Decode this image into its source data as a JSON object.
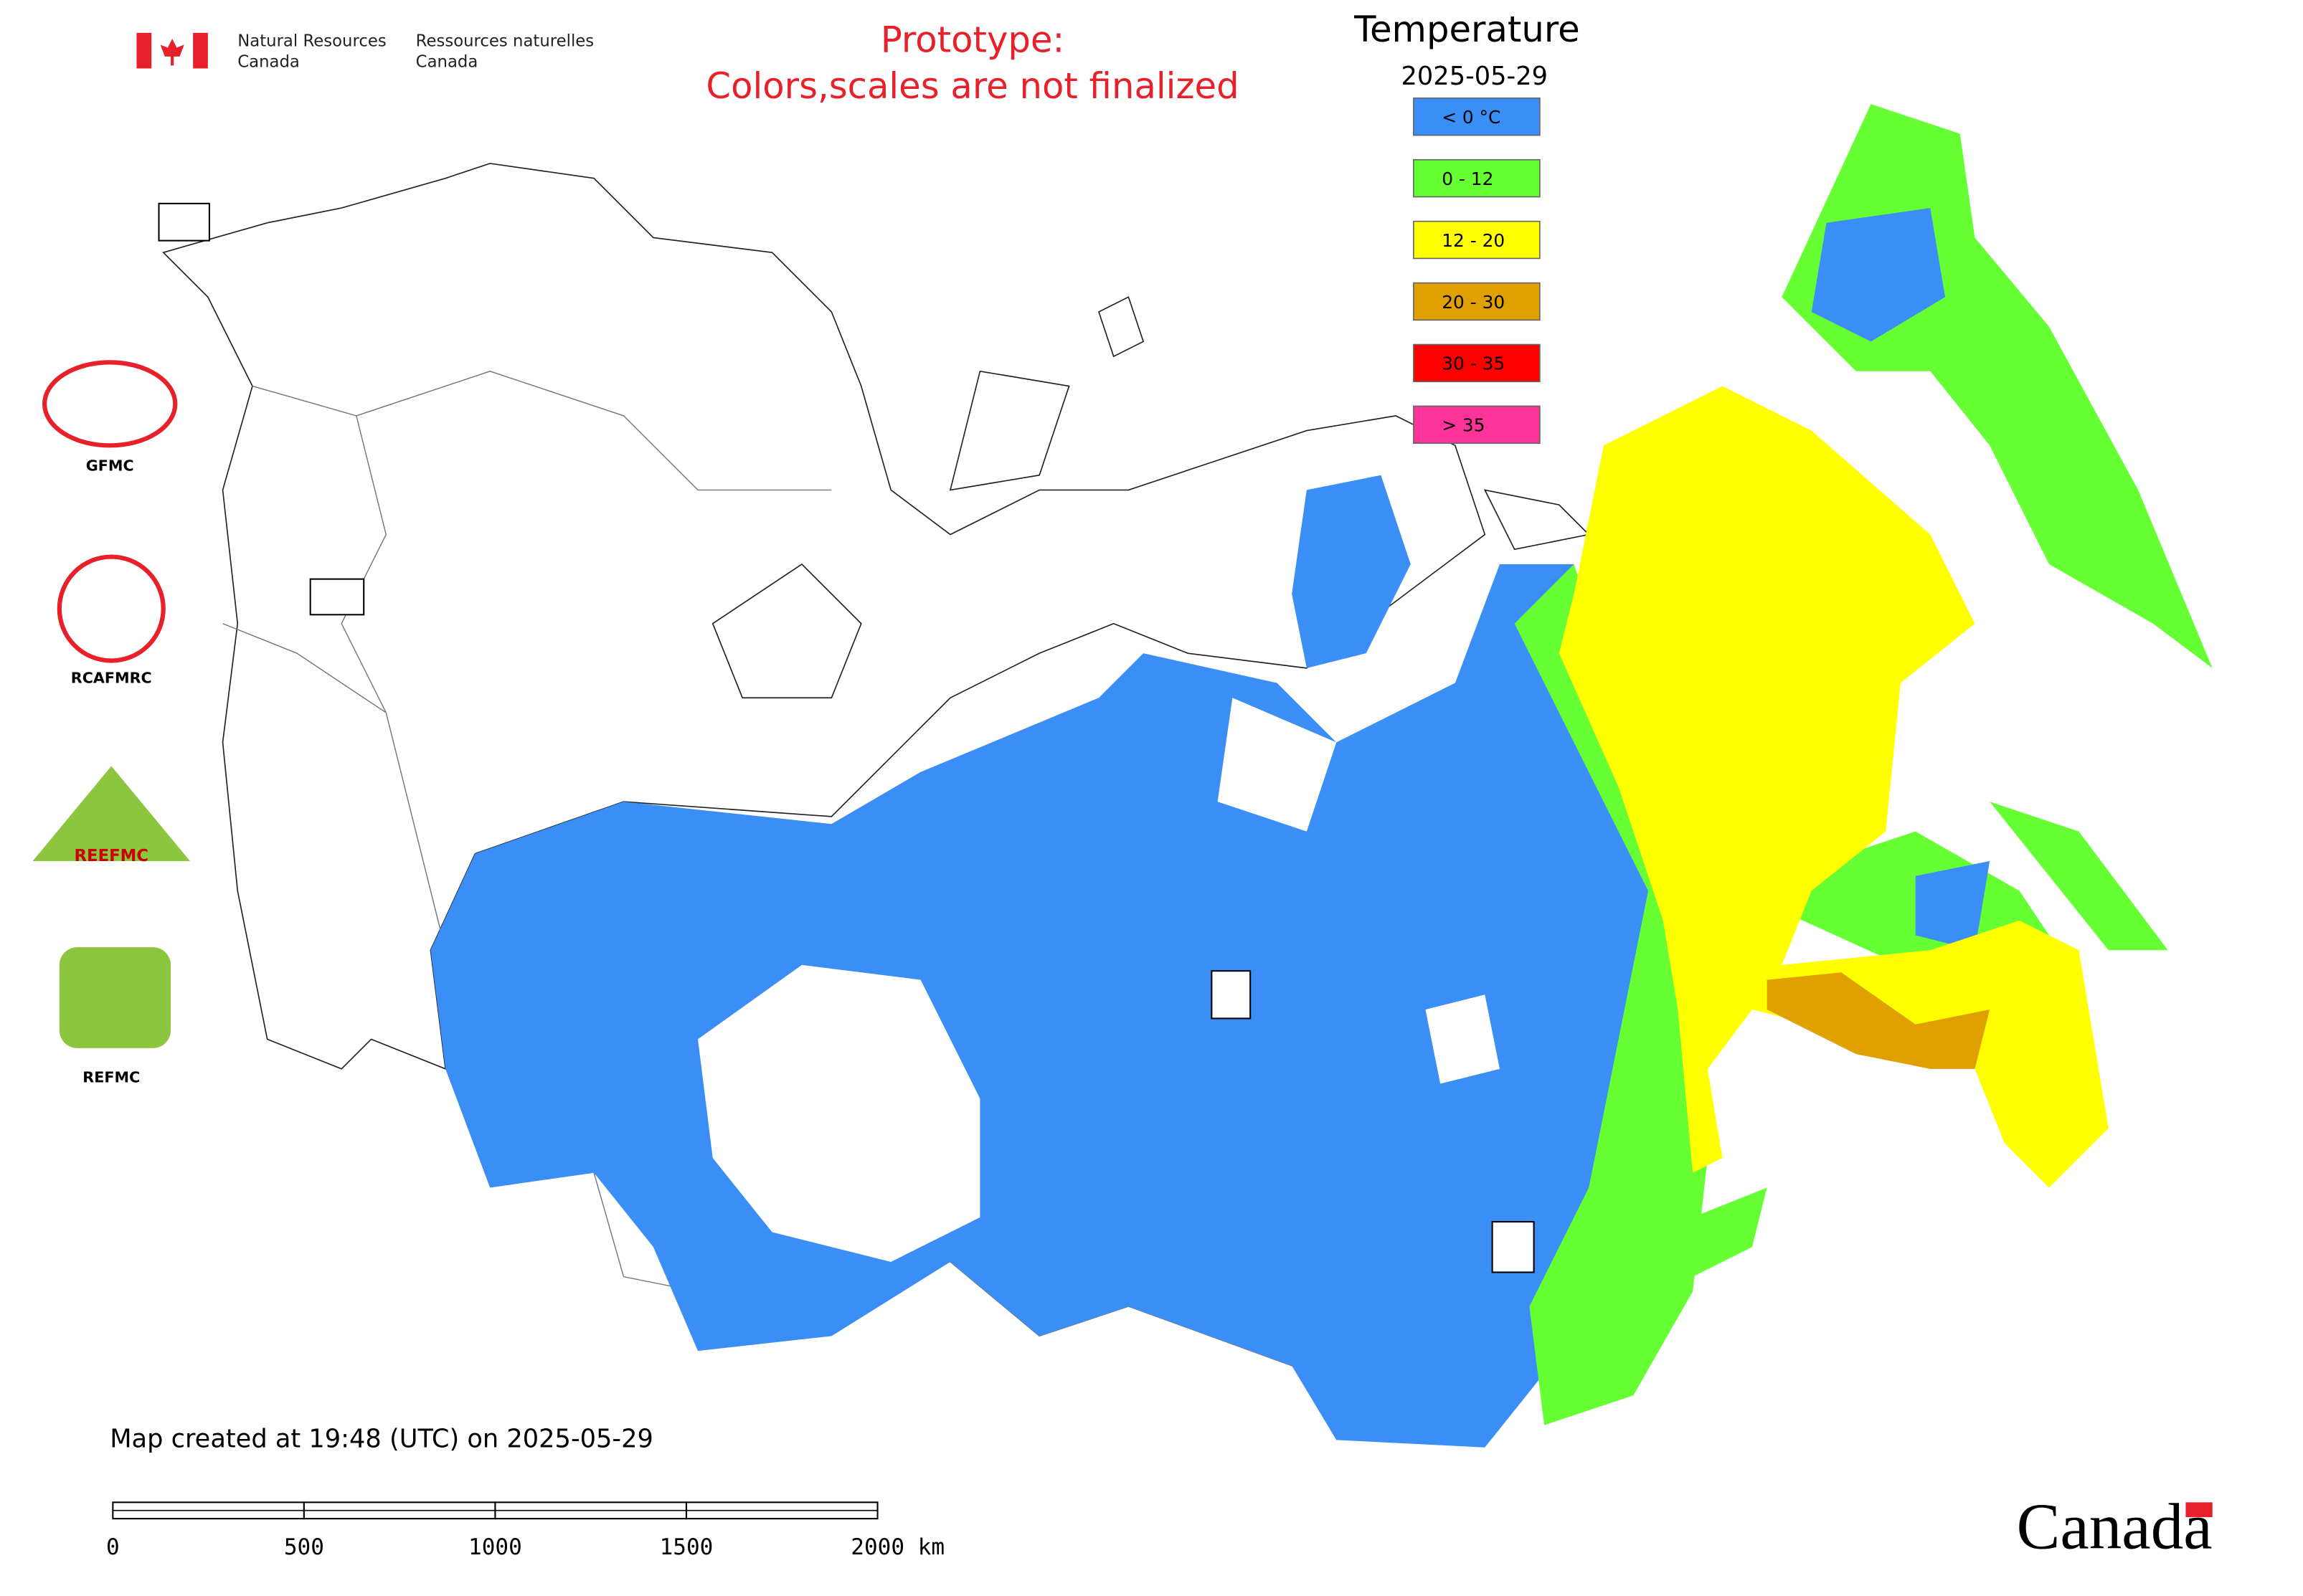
{
  "header": {
    "agency_en_line1": "Natural Resources",
    "agency_en_line2": "Canada",
    "agency_fr_line1": "Ressources naturelles",
    "agency_fr_line2": "Canada"
  },
  "notice": {
    "line1": "Prototype:",
    "line2": "Colors,scales are not finalized"
  },
  "legend": {
    "title": "Temperature",
    "date": "2025-05-29",
    "items": [
      {
        "label": "< 0 °C",
        "color": "#3a8ef6"
      },
      {
        "label": "0 - 12",
        "color": "#66ff33"
      },
      {
        "label": "12 - 20",
        "color": "#ffff00"
      },
      {
        "label": "20 - 30",
        "color": "#e0a000"
      },
      {
        "label": "30 - 35",
        "color": "#ff0000"
      },
      {
        "label": "> 35",
        "color": "#ff3399"
      }
    ]
  },
  "logos": [
    "GFMC",
    "RCAFMRC",
    "REEFMC",
    "REFMC"
  ],
  "footer": {
    "created": "Map created at 19:48 (UTC) on 2025-05-29",
    "scale_labels": [
      "0",
      "500",
      "1000",
      "1500",
      "2000 km"
    ],
    "wordmark": "Canada"
  }
}
